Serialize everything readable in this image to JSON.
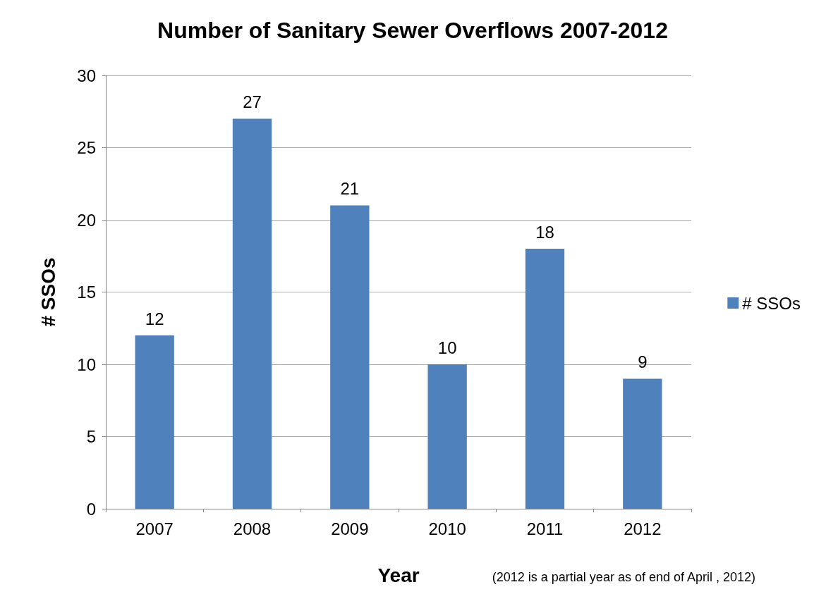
{
  "chart_data": {
    "type": "bar",
    "title": "Number of Sanitary Sewer Overflows 2007-2012",
    "xlabel": "Year",
    "ylabel": "# SSOs",
    "categories": [
      "2007",
      "2008",
      "2009",
      "2010",
      "2011",
      "2012"
    ],
    "series": [
      {
        "name": "# SSOs",
        "color": "#4f81bd",
        "values": [
          12,
          27,
          21,
          10,
          18,
          9
        ]
      }
    ],
    "ylim": [
      0,
      30
    ],
    "yticks": [
      0,
      5,
      10,
      15,
      20,
      25,
      30
    ],
    "grid": "y",
    "legend": "right",
    "data_labels": true,
    "annotations": [
      "(2012 is a partial year as of end of April , 2012)"
    ]
  }
}
